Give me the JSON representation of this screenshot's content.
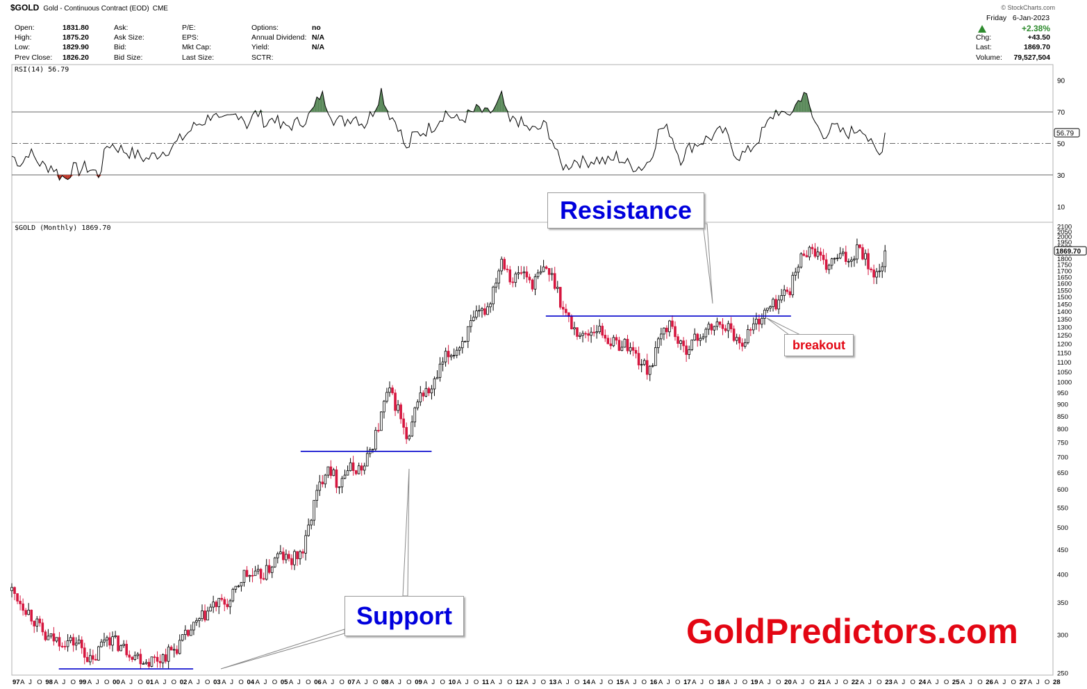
{
  "header": {
    "symbol": "$GOLD",
    "name": "Gold - Continuous Contract (EOD)",
    "exchange": "CME",
    "copyright": "© StockCharts.com",
    "date": "Friday   6-Jan-2023"
  },
  "quote": {
    "col1": [
      {
        "label": "Open:",
        "value": "1831.80"
      },
      {
        "label": "High:",
        "value": "1875.20"
      },
      {
        "label": "Low:",
        "value": "1829.90"
      },
      {
        "label": "Prev Close:",
        "value": "1826.20"
      }
    ],
    "col2": [
      "Ask:",
      "Ask Size:",
      "Bid:",
      "Bid Size:"
    ],
    "col3": [
      "P/E:",
      "EPS:",
      "Mkt Cap:",
      "Last Size:"
    ],
    "col4": [
      {
        "label": "Options:",
        "value": "no"
      },
      {
        "label": "Annual Dividend:",
        "value": "N/A"
      },
      {
        "label": "Yield:",
        "value": "N/A"
      },
      {
        "label": "SCTR:",
        "value": ""
      }
    ],
    "right": {
      "pct": "+2.38%",
      "rows": [
        {
          "label": "Chg:",
          "value": "+43.50"
        },
        {
          "label": "Last:",
          "value": "1869.70"
        },
        {
          "label": "Volume:",
          "value": "79,527,504"
        }
      ],
      "up_color": "#2e8b2e"
    }
  },
  "chart_data": [
    {
      "type": "line",
      "title": "RSI(14) 56.79",
      "last_value": 56.79,
      "last_label": "56.79",
      "ylim": [
        0,
        100
      ],
      "yticks": [
        10,
        30,
        50,
        70,
        90
      ],
      "overbought": 70,
      "oversold": 30,
      "midline": 50,
      "fill_color": "#5b8a5b",
      "oversold_fill_color": "#c0392b",
      "series": [
        {
          "values": [
            [
              1997.0,
              42
            ],
            [
              1997.3,
              37
            ],
            [
              1997.5,
              45
            ],
            [
              1997.8,
              38
            ],
            [
              1998.0,
              35
            ],
            [
              1998.2,
              36
            ],
            [
              1998.4,
              30
            ],
            [
              1998.6,
              28
            ],
            [
              1998.8,
              34
            ],
            [
              1999.0,
              33
            ],
            [
              1999.2,
              35
            ],
            [
              1999.4,
              33
            ],
            [
              1999.6,
              30
            ],
            [
              1999.85,
              50
            ],
            [
              2000.0,
              49
            ],
            [
              2000.4,
              45
            ],
            [
              2000.8,
              42
            ],
            [
              2001.0,
              40
            ],
            [
              2001.4,
              44
            ],
            [
              2001.8,
              48
            ],
            [
              2002.0,
              52
            ],
            [
              2002.3,
              58
            ],
            [
              2002.5,
              62
            ],
            [
              2002.8,
              65
            ],
            [
              2003.0,
              70
            ],
            [
              2003.2,
              62
            ],
            [
              2003.5,
              66
            ],
            [
              2003.8,
              70
            ],
            [
              2004.0,
              62
            ],
            [
              2004.3,
              70
            ],
            [
              2004.6,
              62
            ],
            [
              2004.8,
              68
            ],
            [
              2005.0,
              60
            ],
            [
              2005.4,
              62
            ],
            [
              2005.8,
              66
            ],
            [
              2006.0,
              72
            ],
            [
              2006.2,
              82
            ],
            [
              2006.4,
              74
            ],
            [
              2006.6,
              65
            ],
            [
              2006.9,
              64
            ],
            [
              2007.2,
              68
            ],
            [
              2007.5,
              62
            ],
            [
              2007.8,
              72
            ],
            [
              2008.0,
              84
            ],
            [
              2008.2,
              70
            ],
            [
              2008.5,
              62
            ],
            [
              2008.75,
              45
            ],
            [
              2008.95,
              55
            ],
            [
              2009.3,
              58
            ],
            [
              2009.6,
              62
            ],
            [
              2009.9,
              70
            ],
            [
              2010.3,
              64
            ],
            [
              2010.6,
              68
            ],
            [
              2010.9,
              72
            ],
            [
              2011.1,
              68
            ],
            [
              2011.4,
              72
            ],
            [
              2011.6,
              80
            ],
            [
              2011.8,
              62
            ],
            [
              2012.0,
              66
            ],
            [
              2012.3,
              60
            ],
            [
              2012.6,
              58
            ],
            [
              2012.9,
              62
            ],
            [
              2013.1,
              52
            ],
            [
              2013.3,
              38
            ],
            [
              2013.5,
              35
            ],
            [
              2013.8,
              40
            ],
            [
              2014.0,
              38
            ],
            [
              2014.4,
              40
            ],
            [
              2014.8,
              38
            ],
            [
              2015.0,
              42
            ],
            [
              2015.4,
              36
            ],
            [
              2015.8,
              35
            ],
            [
              2016.0,
              40
            ],
            [
              2016.3,
              60
            ],
            [
              2016.6,
              58
            ],
            [
              2016.9,
              40
            ],
            [
              2017.2,
              48
            ],
            [
              2017.6,
              52
            ],
            [
              2017.9,
              55
            ],
            [
              2018.2,
              58
            ],
            [
              2018.6,
              42
            ],
            [
              2018.9,
              44
            ],
            [
              2019.2,
              52
            ],
            [
              2019.5,
              62
            ],
            [
              2019.8,
              72
            ],
            [
              2020.0,
              66
            ],
            [
              2020.2,
              70
            ],
            [
              2020.4,
              76
            ],
            [
              2020.6,
              84
            ],
            [
              2020.8,
              68
            ],
            [
              2021.0,
              60
            ],
            [
              2021.2,
              56
            ],
            [
              2021.5,
              60
            ],
            [
              2021.8,
              56
            ],
            [
              2022.1,
              58
            ],
            [
              2022.3,
              62
            ],
            [
              2022.6,
              48
            ],
            [
              2022.85,
              42
            ],
            [
              2023.0,
              57
            ]
          ]
        }
      ]
    },
    {
      "type": "candlestick",
      "title": "$GOLD (Monthly) 1869.70",
      "last_value": 1869.7,
      "last_label": "1869.70",
      "yscale": "log",
      "ylim": [
        250,
        2100
      ],
      "yticks": [
        250,
        300,
        350,
        400,
        450,
        500,
        550,
        600,
        650,
        700,
        750,
        800,
        850,
        900,
        950,
        1000,
        1050,
        1100,
        1150,
        1200,
        1250,
        1300,
        1350,
        1400,
        1450,
        1500,
        1550,
        1600,
        1650,
        1700,
        1750,
        1800,
        1850,
        1900,
        1950,
        2000,
        2050,
        2100
      ],
      "xlim": [
        1997.0,
        2028.0
      ],
      "up_color": "#000000",
      "down_color": "#d6163f",
      "close_path": [
        [
          1997.0,
          370
        ],
        [
          1997.5,
          335
        ],
        [
          1998.0,
          295
        ],
        [
          1998.5,
          292
        ],
        [
          1999.0,
          288
        ],
        [
          1999.4,
          260
        ],
        [
          1999.8,
          300
        ],
        [
          2000.2,
          285
        ],
        [
          2000.7,
          272
        ],
        [
          2001.0,
          265
        ],
        [
          2001.4,
          268
        ],
        [
          2001.9,
          282
        ],
        [
          2002.5,
          315
        ],
        [
          2003.0,
          345
        ],
        [
          2003.5,
          350
        ],
        [
          2003.9,
          400
        ],
        [
          2004.3,
          395
        ],
        [
          2004.6,
          405
        ],
        [
          2004.95,
          440
        ],
        [
          2005.3,
          425
        ],
        [
          2005.7,
          450
        ],
        [
          2006.0,
          560
        ],
        [
          2006.4,
          680
        ],
        [
          2006.7,
          615
        ],
        [
          2007.0,
          660
        ],
        [
          2007.5,
          665
        ],
        [
          2007.9,
          800
        ],
        [
          2008.2,
          960
        ],
        [
          2008.5,
          880
        ],
        [
          2008.8,
          730
        ],
        [
          2009.1,
          940
        ],
        [
          2009.5,
          960
        ],
        [
          2009.9,
          1120
        ],
        [
          2010.3,
          1180
        ],
        [
          2010.8,
          1350
        ],
        [
          2011.2,
          1440
        ],
        [
          2011.6,
          1820
        ],
        [
          2011.9,
          1620
        ],
        [
          2012.2,
          1700
        ],
        [
          2012.5,
          1600
        ],
        [
          2012.9,
          1720
        ],
        [
          2013.2,
          1600
        ],
        [
          2013.4,
          1420
        ],
        [
          2013.7,
          1300
        ],
        [
          2014.0,
          1240
        ],
        [
          2014.4,
          1300
        ],
        [
          2014.9,
          1200
        ],
        [
          2015.3,
          1200
        ],
        [
          2015.9,
          1060
        ],
        [
          2016.1,
          1110
        ],
        [
          2016.4,
          1280
        ],
        [
          2016.6,
          1330
        ],
        [
          2016.95,
          1160
        ],
        [
          2017.5,
          1250
        ],
        [
          2017.9,
          1300
        ],
        [
          2018.2,
          1330
        ],
        [
          2018.7,
          1200
        ],
        [
          2019.0,
          1290
        ],
        [
          2019.5,
          1410
        ],
        [
          2019.8,
          1470
        ],
        [
          2020.2,
          1580
        ],
        [
          2020.6,
          1880
        ],
        [
          2020.9,
          1880
        ],
        [
          2021.2,
          1720
        ],
        [
          2021.6,
          1810
        ],
        [
          2022.0,
          1800
        ],
        [
          2022.2,
          1940
        ],
        [
          2022.6,
          1700
        ],
        [
          2022.8,
          1640
        ],
        [
          2023.0,
          1870
        ]
      ],
      "support_lines": [
        {
          "x": [
            1998.4,
            2002.4
          ],
          "y": 255
        },
        {
          "x": [
            2005.6,
            2009.5
          ],
          "y": 719
        }
      ],
      "resistance_line": {
        "x": [
          2012.9,
          2020.2
        ],
        "y": 1370
      },
      "line_color": "#0000cc",
      "xticks": [
        "97",
        "A",
        "J",
        "O",
        "98",
        "A",
        "J",
        "O",
        "99",
        "A",
        "J",
        "O",
        "00",
        "A",
        "J",
        "O",
        "01",
        "A",
        "J",
        "O",
        "02",
        "A",
        "J",
        "O",
        "03",
        "A",
        "J",
        "O",
        "04",
        "A",
        "J",
        "O",
        "05",
        "A",
        "J",
        "O",
        "06",
        "A",
        "J",
        "O",
        "07",
        "A",
        "J",
        "O",
        "08",
        "A",
        "J",
        "O",
        "09",
        "A",
        "J",
        "O",
        "10",
        "A",
        "J",
        "O",
        "11",
        "A",
        "J",
        "O",
        "12",
        "A",
        "J",
        "O",
        "13",
        "A",
        "J",
        "O",
        "14",
        "A",
        "J",
        "O",
        "15",
        "A",
        "J",
        "O",
        "16",
        "A",
        "J",
        "O",
        "17",
        "A",
        "J",
        "O",
        "18",
        "A",
        "J",
        "O",
        "19",
        "A",
        "J",
        "O",
        "20",
        "A",
        "J",
        "O",
        "21",
        "A",
        "J",
        "O",
        "22",
        "A",
        "J",
        "O",
        "23",
        "A",
        "J",
        "O",
        "24",
        "A",
        "J",
        "O",
        "25",
        "A",
        "J",
        "O",
        "26",
        "A",
        "J",
        "O",
        "27",
        "A",
        "J",
        "O",
        "28"
      ]
    }
  ],
  "annotations": {
    "resistance": "Resistance",
    "support": "Support",
    "breakout": "breakout",
    "brand": "GoldPredictors.com",
    "callout_color": "#0000dd",
    "breakout_color": "#e30613"
  }
}
